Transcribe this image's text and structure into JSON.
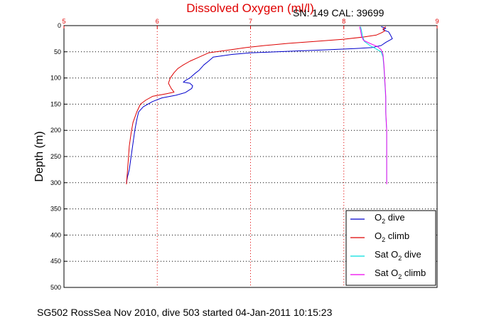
{
  "chart_data": {
    "type": "line",
    "title": "Dissolved Oxygen (ml/l)",
    "calibration_text": "SN: 149  CAL: 39699",
    "ylabel": "Depth (m)",
    "caption": "SG502 RossSea Nov 2010, dive 503 started 04-Jan-2011 10:15:23",
    "xlim": [
      5,
      9
    ],
    "ylim": [
      0,
      500
    ],
    "y_reversed": true,
    "x_axis_position": "top",
    "x_ticks": [
      5,
      6,
      7,
      8,
      9
    ],
    "y_ticks": [
      0,
      50,
      100,
      150,
      200,
      250,
      300,
      350,
      400,
      450,
      500
    ],
    "grid": true,
    "legend_position": "bottom-right",
    "series": [
      {
        "name": "O2 dive",
        "legend": {
          "pre": "O",
          "sub": "2",
          "post": " dive"
        },
        "color": "#0000cc",
        "points": [
          [
            8.4,
            2
          ],
          [
            8.45,
            5
          ],
          [
            8.42,
            8
          ],
          [
            8.48,
            12
          ],
          [
            8.5,
            18
          ],
          [
            8.52,
            25
          ],
          [
            8.45,
            32
          ],
          [
            8.4,
            38
          ],
          [
            8.3,
            42
          ],
          [
            8.1,
            44
          ],
          [
            7.7,
            47
          ],
          [
            7.4,
            49
          ],
          [
            7.0,
            52
          ],
          [
            6.8,
            55
          ],
          [
            6.6,
            60
          ],
          [
            6.55,
            68
          ],
          [
            6.5,
            75
          ],
          [
            6.45,
            85
          ],
          [
            6.4,
            92
          ],
          [
            6.35,
            100
          ],
          [
            6.3,
            105
          ],
          [
            6.28,
            108
          ],
          [
            6.35,
            110
          ],
          [
            6.38,
            115
          ],
          [
            6.37,
            120
          ],
          [
            6.3,
            128
          ],
          [
            6.2,
            133
          ],
          [
            6.05,
            138
          ],
          [
            5.95,
            145
          ],
          [
            5.85,
            155
          ],
          [
            5.8,
            165
          ],
          [
            5.78,
            180
          ],
          [
            5.76,
            200
          ],
          [
            5.74,
            225
          ],
          [
            5.72,
            250
          ],
          [
            5.7,
            275
          ],
          [
            5.68,
            290
          ],
          [
            5.67,
            300
          ]
        ]
      },
      {
        "name": "O2 climb",
        "legend": {
          "pre": "O",
          "sub": "2",
          "post": " climb"
        },
        "color": "#dd0000",
        "points": [
          [
            8.45,
            2
          ],
          [
            8.42,
            6
          ],
          [
            8.44,
            10
          ],
          [
            8.4,
            14
          ],
          [
            8.35,
            18
          ],
          [
            8.2,
            22
          ],
          [
            8.0,
            26
          ],
          [
            7.7,
            30
          ],
          [
            7.4,
            34
          ],
          [
            7.15,
            38
          ],
          [
            6.95,
            42
          ],
          [
            6.75,
            47
          ],
          [
            6.55,
            52
          ],
          [
            6.45,
            60
          ],
          [
            6.35,
            68
          ],
          [
            6.28,
            75
          ],
          [
            6.22,
            82
          ],
          [
            6.18,
            90
          ],
          [
            6.14,
            100
          ],
          [
            6.12,
            110
          ],
          [
            6.15,
            120
          ],
          [
            6.18,
            127
          ],
          [
            6.1,
            130
          ],
          [
            5.95,
            135
          ],
          [
            5.88,
            142
          ],
          [
            5.82,
            150
          ],
          [
            5.78,
            165
          ],
          [
            5.74,
            185
          ],
          [
            5.72,
            205
          ],
          [
            5.7,
            230
          ],
          [
            5.69,
            255
          ],
          [
            5.68,
            280
          ],
          [
            5.67,
            303
          ]
        ]
      },
      {
        "name": "Sat O2 dive",
        "legend": {
          "pre": "Sat O",
          "sub": "2",
          "post": " dive"
        },
        "color": "#00dddd",
        "points": [
          [
            8.18,
            2
          ],
          [
            8.19,
            10
          ],
          [
            8.2,
            20
          ],
          [
            8.22,
            30
          ],
          [
            8.28,
            38
          ],
          [
            8.35,
            45
          ],
          [
            8.4,
            50
          ],
          [
            8.42,
            60
          ],
          [
            8.43,
            80
          ],
          [
            8.44,
            110
          ],
          [
            8.45,
            140
          ],
          [
            8.45,
            170
          ],
          [
            8.46,
            200
          ],
          [
            8.46,
            250
          ],
          [
            8.46,
            300
          ]
        ]
      },
      {
        "name": "Sat O2 climb",
        "legend": {
          "pre": "Sat O",
          "sub": "2",
          "post": " climb"
        },
        "color": "#ee00ee",
        "points": [
          [
            8.17,
            2
          ],
          [
            8.18,
            10
          ],
          [
            8.19,
            20
          ],
          [
            8.21,
            28
          ],
          [
            8.28,
            34
          ],
          [
            8.36,
            40
          ],
          [
            8.4,
            46
          ],
          [
            8.42,
            55
          ],
          [
            8.43,
            75
          ],
          [
            8.44,
            105
          ],
          [
            8.45,
            135
          ],
          [
            8.45,
            165
          ],
          [
            8.46,
            200
          ],
          [
            8.46,
            250
          ],
          [
            8.46,
            303
          ]
        ]
      }
    ]
  }
}
